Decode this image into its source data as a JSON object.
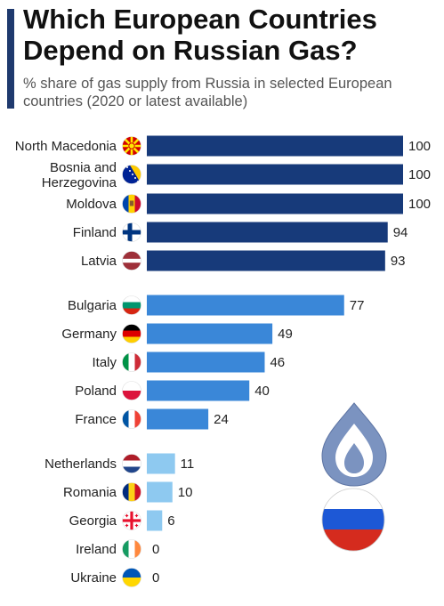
{
  "title": "Which European Countries Depend on Russian Gas?",
  "subtitle": "% share of gas supply from Russia in selected European countries (2020 or latest available)",
  "colors": {
    "accent": "#1f3a6e",
    "tier_high": "#173a7a",
    "tier_mid": "#3a87d8",
    "tier_low": "#8ec9f0",
    "flame": "#7b93c0",
    "russia_white": "#ffffff",
    "russia_blue": "#1d58d6",
    "russia_red": "#d52b1e"
  },
  "chart_data": {
    "type": "bar",
    "orientation": "horizontal",
    "title": "Which European Countries Depend on Russian Gas?",
    "subtitle": "% share of gas supply from Russia in selected European countries (2020 or latest available)",
    "xlim": [
      0,
      100
    ],
    "grid": false,
    "show_values": true,
    "categories": [
      "North Macedonia",
      "Bosnia and Herzegovina",
      "Moldova",
      "Finland",
      "Latvia",
      "Bulgaria",
      "Germany",
      "Italy",
      "Poland",
      "France",
      "Netherlands",
      "Romania",
      "Georgia",
      "Ireland",
      "Ukraine"
    ],
    "values": [
      100,
      100,
      100,
      94,
      93,
      77,
      49,
      46,
      40,
      24,
      11,
      10,
      6,
      0,
      0
    ],
    "tiers": [
      "high",
      "high",
      "high",
      "high",
      "high",
      "mid",
      "mid",
      "mid",
      "mid",
      "mid",
      "low",
      "low",
      "low",
      "low",
      "low"
    ],
    "flags": [
      "north-macedonia-flag-icon",
      "bosnia-flag-icon",
      "moldova-flag-icon",
      "finland-flag-icon",
      "latvia-flag-icon",
      "bulgaria-flag-icon",
      "germany-flag-icon",
      "italy-flag-icon",
      "poland-flag-icon",
      "france-flag-icon",
      "netherlands-flag-icon",
      "romania-flag-icon",
      "georgia-flag-icon",
      "ireland-flag-icon",
      "ukraine-flag-icon"
    ]
  },
  "decoration": {
    "icon": "gas-flame-icon",
    "flag": "russia-flag-icon"
  }
}
